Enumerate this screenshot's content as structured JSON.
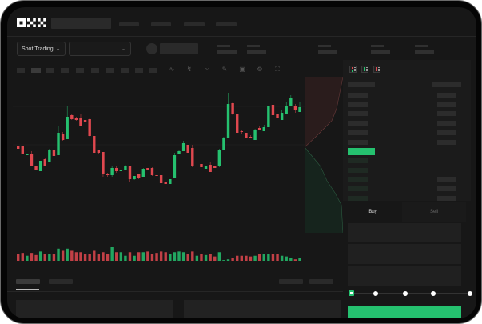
{
  "brand": {
    "logo": "OKX"
  },
  "toolbar": {
    "market_type": "Spot Trading",
    "pair_select": ""
  },
  "colors": {
    "up": "#25c16f",
    "down": "#e0484f",
    "background": "#171717",
    "accent": "#25c16f"
  },
  "icons": [
    "chevron-down-icon",
    "indicator-icon",
    "draw-icon",
    "camera-icon",
    "settings-icon",
    "fullscreen-icon",
    "orderbook-both-icon",
    "orderbook-buy-icon",
    "orderbook-sell-icon"
  ],
  "chart": {
    "candles_ohlc": [
      [
        68,
        65,
        69,
        64
      ],
      [
        68,
        59,
        69,
        58
      ],
      [
        57,
        58,
        58,
        57
      ],
      [
        58,
        44,
        62,
        43
      ],
      [
        43,
        39,
        44,
        38
      ],
      [
        37,
        50,
        50,
        37
      ],
      [
        52,
        44,
        53,
        43
      ],
      [
        48,
        64,
        65,
        48
      ],
      [
        63,
        56,
        63,
        55
      ],
      [
        57,
        85,
        93,
        57
      ],
      [
        84,
        76,
        86,
        75
      ],
      [
        77,
        105,
        118,
        77
      ],
      [
        107,
        102,
        108,
        101
      ],
      [
        104,
        101,
        105,
        100
      ],
      [
        104,
        94,
        109,
        93
      ],
      [
        101,
        98,
        101,
        98
      ],
      [
        102,
        81,
        104,
        80
      ],
      [
        81,
        60,
        81,
        60
      ],
      [
        63,
        60,
        63,
        58
      ],
      [
        61,
        33,
        61,
        30
      ],
      [
        33,
        32,
        35,
        30
      ],
      [
        32,
        41,
        43,
        30
      ],
      [
        41,
        37,
        43,
        35
      ],
      [
        37,
        39,
        39,
        32
      ],
      [
        39,
        43,
        45,
        39
      ],
      [
        43,
        27,
        43,
        24
      ],
      [
        27,
        31,
        31,
        26
      ],
      [
        33,
        29,
        34,
        27
      ],
      [
        30,
        40,
        41,
        30
      ],
      [
        41,
        38,
        41,
        38
      ],
      [
        41,
        32,
        42,
        31
      ],
      [
        32,
        31,
        32,
        31
      ],
      [
        32,
        22,
        33,
        20
      ],
      [
        23,
        21,
        24,
        21
      ],
      [
        21,
        27,
        27,
        21
      ],
      [
        28,
        57,
        60,
        28
      ],
      [
        58,
        62,
        64,
        58
      ],
      [
        62,
        72,
        75,
        62
      ],
      [
        70,
        60,
        70,
        60
      ],
      [
        66,
        44,
        70,
        42
      ],
      [
        43,
        44,
        46,
        41
      ],
      [
        46,
        42,
        46,
        42
      ],
      [
        40,
        43,
        43,
        40
      ],
      [
        45,
        36,
        48,
        36
      ],
      [
        43,
        41,
        43,
        41
      ],
      [
        43,
        63,
        65,
        42
      ],
      [
        63,
        78,
        80,
        63
      ],
      [
        78,
        121,
        135,
        78
      ],
      [
        122,
        109,
        123,
        107
      ],
      [
        109,
        85,
        109,
        83
      ],
      [
        87,
        86,
        88,
        84
      ],
      [
        85,
        79,
        85,
        78
      ],
      [
        80,
        79,
        82,
        79
      ],
      [
        76,
        89,
        90,
        76
      ],
      [
        91,
        89,
        94,
        89
      ],
      [
        87,
        92,
        95,
        87
      ],
      [
        92,
        118,
        118,
        92
      ],
      [
        120,
        107,
        120,
        106
      ],
      [
        108,
        103,
        108,
        103
      ],
      [
        101,
        110,
        113,
        101
      ],
      [
        109,
        119,
        124,
        109
      ],
      [
        119,
        128,
        132,
        119
      ],
      [
        119,
        113,
        121,
        110
      ],
      [
        111,
        117,
        123,
        111
      ]
    ],
    "volumes": [
      10,
      11,
      7,
      11,
      8,
      13,
      10,
      9,
      10,
      17,
      14,
      17,
      14,
      12,
      12,
      9,
      10,
      14,
      10,
      12,
      9,
      19,
      12,
      12,
      7,
      12,
      7,
      12,
      12,
      13,
      9,
      11,
      13,
      12,
      9,
      12,
      13,
      12,
      9,
      13,
      7,
      9,
      8,
      9,
      6,
      12,
      1,
      2,
      4,
      7,
      7,
      7,
      6,
      7,
      9,
      10,
      9,
      9,
      10,
      7,
      6,
      4,
      2,
      4
    ]
  },
  "trade": {
    "tabs": [
      {
        "label": "Buy",
        "active": true
      },
      {
        "label": "Sell",
        "active": false
      }
    ],
    "slider_value": 0
  }
}
